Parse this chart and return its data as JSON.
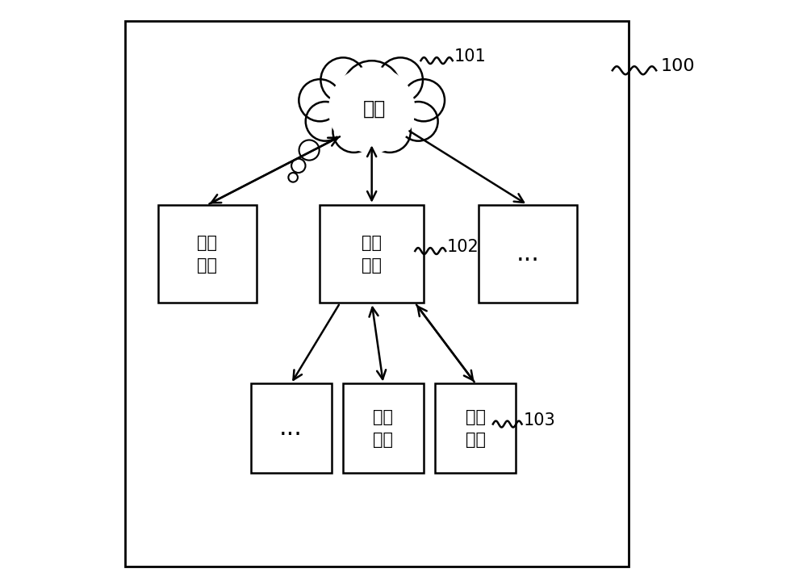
{
  "background_color": "#ffffff",
  "border_color": "#000000",
  "box_color": "#ffffff",
  "text_color": "#000000",
  "arrow_color": "#000000",
  "label_100": "100",
  "label_101": "101",
  "label_102": "102",
  "label_103": "103",
  "cloud_text": "云端",
  "box1_text": "边缘\n网关",
  "box2_text": "边缘\n网关",
  "box3_text": "...",
  "box4_text": "...",
  "box5_text": "采集\n设备",
  "box6_text": "采集\n设备",
  "fig_width": 10.0,
  "fig_height": 7.15
}
